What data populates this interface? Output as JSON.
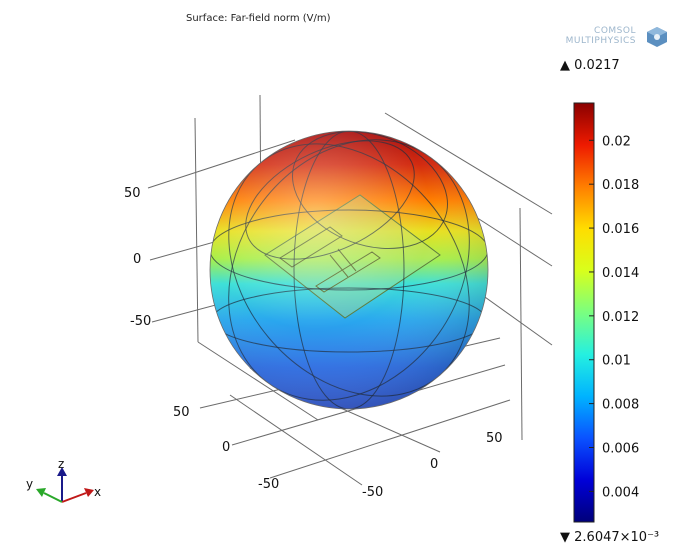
{
  "title": "Surface: Far-field norm (V/m)",
  "logo": {
    "line1": "COMSOL",
    "line2": "MULTIPHYSICS"
  },
  "colorbar": {
    "max_label": "0.0217",
    "min_label": "2.6047×10⁻³",
    "max_marker": "▲",
    "min_marker": "▼",
    "min": 0.0026047,
    "max": 0.0217,
    "ticks": [
      "0.02",
      "0.018",
      "0.016",
      "0.014",
      "0.012",
      "0.01",
      "0.008",
      "0.006",
      "0.004"
    ],
    "colormap": [
      "#00007a",
      "#0000d8",
      "#0a52ff",
      "#00b3ff",
      "#25f0e0",
      "#7aff80",
      "#d8ff1c",
      "#ffdd00",
      "#ff7f00",
      "#ee1a00",
      "#8a0000"
    ]
  },
  "chart_data": {
    "type": "3d-surface",
    "title": "Surface: Far-field norm (V/m)",
    "expression": "Far-field norm",
    "unit": "V/m",
    "color_range": [
      0.0026047,
      0.0217
    ],
    "axes": {
      "z_ticks": [
        "50",
        "0",
        "-50"
      ],
      "x_ticks": [
        "50",
        "0",
        "-50"
      ],
      "y_ticks": [
        "50",
        "0",
        "-50"
      ]
    },
    "triad": {
      "z": "z",
      "y": "y",
      "x": "x"
    }
  }
}
